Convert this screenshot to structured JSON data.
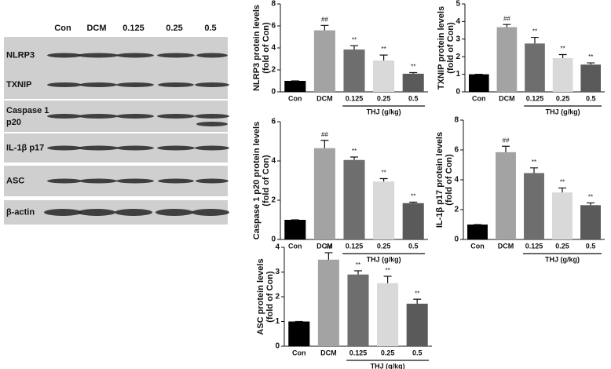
{
  "blot": {
    "columns": [
      "Con",
      "DCM",
      "0.125",
      "0.25",
      "0.5"
    ],
    "rows": [
      [
        "NLRP3"
      ],
      [
        "TXNIP"
      ],
      [
        "Caspase 1",
        "p20"
      ],
      [
        "IL-1β p17"
      ],
      [
        "ASC"
      ],
      [
        "β-actin"
      ]
    ]
  },
  "chart_data": [
    {
      "type": "bar",
      "y_label": [
        "NLRP3 protein levels",
        "(fold of Con)"
      ],
      "categories": [
        "Con",
        "DCM",
        "0.125",
        "0.25",
        "0.5"
      ],
      "values": [
        1,
        5.6,
        3.85,
        2.85,
        1.65
      ],
      "errors": [
        0,
        0.45,
        0.35,
        0.5,
        0.1
      ],
      "colors": [
        "#000000",
        "#a3a3a3",
        "#6e6e6e",
        "#d9d9d9",
        "#5a5a5a"
      ],
      "annotations": [
        null,
        "##",
        "**",
        "**",
        "**"
      ],
      "group_label": "THJ (g/kg)",
      "ylim": [
        0,
        8
      ],
      "yticks": [
        0,
        2,
        4,
        6,
        8
      ]
    },
    {
      "type": "bar",
      "y_label": [
        "TXNIP protein levels",
        "(fold of Con)"
      ],
      "categories": [
        "Con",
        "DCM",
        "0.125",
        "0.25",
        "0.5"
      ],
      "values": [
        1,
        3.68,
        2.75,
        1.92,
        1.55
      ],
      "errors": [
        0,
        0.15,
        0.35,
        0.2,
        0.1
      ],
      "colors": [
        "#000000",
        "#a3a3a3",
        "#6e6e6e",
        "#d9d9d9",
        "#5a5a5a"
      ],
      "annotations": [
        null,
        "##",
        "**",
        "**",
        "**"
      ],
      "group_label": "THJ (g/kg)",
      "ylim": [
        0,
        5
      ],
      "yticks": [
        0,
        1,
        2,
        3,
        4,
        5
      ]
    },
    {
      "type": "bar",
      "y_label": [
        "Caspase 1 p20 protein  levels",
        "(fold of Con)"
      ],
      "categories": [
        "Con",
        "DCM",
        "0.125",
        "0.25",
        "0.5"
      ],
      "values": [
        1,
        4.65,
        4.05,
        2.95,
        1.85
      ],
      "errors": [
        0,
        0.4,
        0.15,
        0.15,
        0.05
      ],
      "colors": [
        "#000000",
        "#a3a3a3",
        "#6e6e6e",
        "#d9d9d9",
        "#5a5a5a"
      ],
      "annotations": [
        null,
        "##",
        "**",
        "**",
        "**"
      ],
      "group_label": "THJ (g/kg)",
      "ylim": [
        0,
        6
      ],
      "yticks": [
        0,
        2,
        4,
        6
      ]
    },
    {
      "type": "bar",
      "y_label": [
        "IL-1β p17 protein  levels",
        "(fold of Con)"
      ],
      "categories": [
        "Con",
        "DCM",
        "0.125",
        "0.25",
        "0.5"
      ],
      "values": [
        1,
        5.85,
        4.45,
        3.15,
        2.3
      ],
      "errors": [
        0,
        0.4,
        0.35,
        0.3,
        0.15
      ],
      "colors": [
        "#000000",
        "#a3a3a3",
        "#6e6e6e",
        "#d9d9d9",
        "#5a5a5a"
      ],
      "annotations": [
        null,
        "##",
        "**",
        "**",
        "**"
      ],
      "group_label": "THJ (g/kg)",
      "ylim": [
        0,
        8
      ],
      "yticks": [
        0,
        2,
        4,
        6,
        8
      ]
    },
    {
      "type": "bar",
      "y_label": [
        "ASC protein levels",
        "(fold of Con)"
      ],
      "categories": [
        "Con",
        "DCM",
        "0.125",
        "0.25",
        "0.5"
      ],
      "values": [
        1,
        3.5,
        2.9,
        2.55,
        1.72
      ],
      "errors": [
        0,
        0.28,
        0.15,
        0.28,
        0.18
      ],
      "colors": [
        "#000000",
        "#a3a3a3",
        "#6e6e6e",
        "#d9d9d9",
        "#5a5a5a"
      ],
      "annotations": [
        null,
        "##",
        "**",
        "**",
        "**"
      ],
      "group_label": "THJ (g/kg)",
      "ylim": [
        0,
        4
      ],
      "yticks": [
        0,
        1,
        2,
        3,
        4
      ]
    }
  ]
}
